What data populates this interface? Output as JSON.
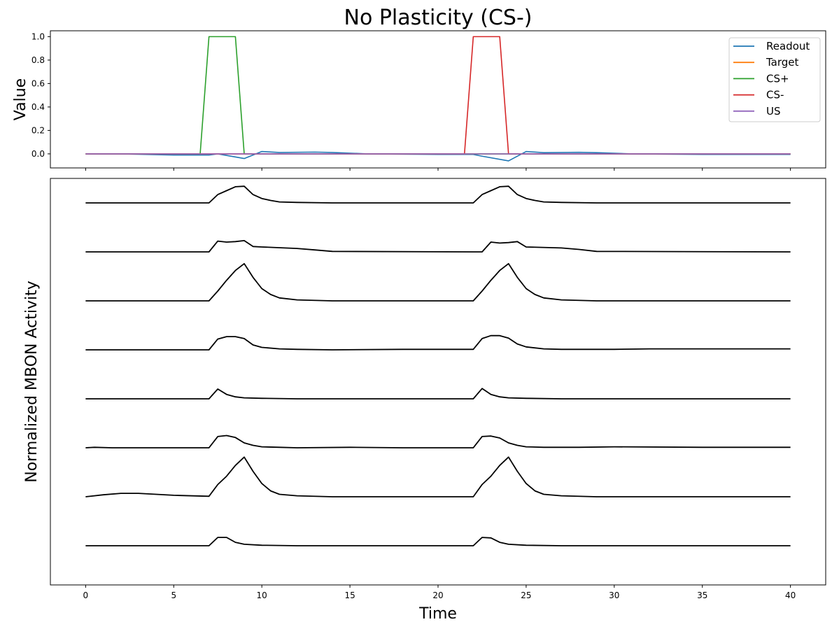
{
  "chart_data": [
    {
      "type": "line",
      "title": "No Plasticity (CS-)",
      "xlabel": "",
      "ylabel": "Value",
      "xlim": [
        -2,
        42
      ],
      "ylim": [
        -0.12,
        1.05
      ],
      "xticks": [
        0,
        5,
        10,
        15,
        20,
        25,
        30,
        35,
        40
      ],
      "xtick_labels_visible": false,
      "yticks": [
        0.0,
        0.2,
        0.4,
        0.6,
        0.8,
        1.0
      ],
      "ytick_labels": [
        "0.0",
        "0.2",
        "0.4",
        "0.6",
        "0.8",
        "1.0"
      ],
      "legend_position": "top-right",
      "grid": false,
      "series": [
        {
          "name": "Readout",
          "color": "#1f77b4",
          "x": [
            0,
            2,
            5,
            7,
            7.5,
            9,
            10,
            11,
            13,
            14,
            16,
            20,
            22,
            22.5,
            24,
            25,
            26,
            28,
            29,
            31,
            35,
            40
          ],
          "y": [
            0,
            0,
            -0.01,
            -0.01,
            0,
            -0.04,
            0.02,
            0.012,
            0.015,
            0.012,
            0,
            -0.005,
            -0.005,
            -0.02,
            -0.06,
            0.02,
            0.01,
            0.013,
            0.01,
            0,
            -0.005,
            -0.005
          ]
        },
        {
          "name": "Target",
          "color": "#ff7f0e",
          "x": [
            0,
            40
          ],
          "y": [
            0,
            0
          ]
        },
        {
          "name": "CS+",
          "color": "#2ca02c",
          "x": [
            0,
            6.5,
            7,
            8.5,
            9,
            40
          ],
          "y": [
            0,
            0,
            1,
            1,
            0,
            0
          ]
        },
        {
          "name": "CS-",
          "color": "#d62728",
          "x": [
            0,
            21.5,
            22,
            23.5,
            24,
            40
          ],
          "y": [
            0,
            0,
            1,
            1,
            0,
            0
          ]
        },
        {
          "name": "US",
          "color": "#9467bd",
          "x": [
            0,
            40
          ],
          "y": [
            0,
            0
          ]
        }
      ]
    },
    {
      "type": "line",
      "title": "",
      "xlabel": "Time",
      "ylabel": "Normalized MBON Activity",
      "xlim": [
        -2,
        42
      ],
      "ylim": [
        -0.8,
        7.5
      ],
      "xticks": [
        0,
        5,
        10,
        15,
        20,
        25,
        30,
        35,
        40
      ],
      "xtick_labels": [
        "0",
        "5",
        "10",
        "15",
        "20",
        "25",
        "30",
        "35",
        "40"
      ],
      "yticks_visible": false,
      "grid": false,
      "line_color": "#000000",
      "series": [
        {
          "x": [
            0,
            7,
            7.5,
            8,
            8.5,
            9,
            9.5,
            10,
            10.5,
            11,
            12,
            14,
            22,
            22.5,
            23,
            23.5,
            24,
            24.5,
            25,
            25.5,
            26,
            27,
            29,
            40
          ],
          "y": [
            7,
            7,
            7.17,
            7.25,
            7.33,
            7.34,
            7.17,
            7.09,
            7.05,
            7.02,
            7.01,
            7,
            7,
            7.17,
            7.25,
            7.33,
            7.34,
            7.17,
            7.09,
            7.05,
            7.02,
            7.01,
            7,
            7
          ]
        },
        {
          "x": [
            0,
            7,
            7.5,
            8,
            8.5,
            9,
            9.5,
            10,
            12,
            13,
            14,
            22,
            22.5,
            23,
            23.5,
            24,
            24.5,
            25,
            27,
            28,
            29,
            40
          ],
          "y": [
            6,
            6,
            6.22,
            6.2,
            6.21,
            6.23,
            6.11,
            6.1,
            6.07,
            6.04,
            6.01,
            6,
            6,
            6.2,
            6.18,
            6.19,
            6.21,
            6.1,
            6.08,
            6.05,
            6.01,
            6
          ]
        },
        {
          "x": [
            0,
            7,
            7.5,
            8,
            8.5,
            9,
            9.5,
            10,
            10.5,
            11,
            12,
            14,
            22,
            22.5,
            23,
            23.5,
            24,
            24.5,
            25,
            25.5,
            26,
            27,
            29,
            40
          ],
          "y": [
            5,
            5,
            5.2,
            5.42,
            5.62,
            5.76,
            5.48,
            5.25,
            5.13,
            5.06,
            5.02,
            5,
            5,
            5.2,
            5.42,
            5.62,
            5.76,
            5.48,
            5.25,
            5.13,
            5.06,
            5.02,
            5,
            5
          ]
        },
        {
          "x": [
            0,
            7,
            7.5,
            8,
            8.5,
            9,
            9.5,
            10,
            11,
            12,
            14,
            18,
            22,
            22.5,
            23,
            23.5,
            24,
            24.5,
            25,
            26,
            27,
            30,
            32,
            40
          ],
          "y": [
            4,
            4,
            4.22,
            4.27,
            4.27,
            4.23,
            4.1,
            4.05,
            4.02,
            4.01,
            4,
            4.01,
            4.01,
            4.23,
            4.29,
            4.29,
            4.24,
            4.12,
            4.06,
            4.02,
            4.01,
            4.01,
            4.02,
            4.02
          ]
        },
        {
          "x": [
            0,
            7,
            7.5,
            8,
            8.5,
            9,
            10,
            12,
            22,
            22.5,
            23,
            23.5,
            24,
            25,
            27,
            40
          ],
          "y": [
            3,
            3,
            3.2,
            3.09,
            3.04,
            3.02,
            3.01,
            3,
            3,
            3.21,
            3.09,
            3.04,
            3.02,
            3.01,
            3,
            3
          ]
        },
        {
          "x": [
            0,
            0.5,
            1.5,
            4,
            7,
            7.5,
            8,
            8.5,
            9,
            9.5,
            10,
            11,
            12,
            15,
            18,
            22,
            22.5,
            23,
            23.5,
            24,
            24.5,
            25,
            26,
            28,
            30,
            35,
            40
          ],
          "y": [
            2,
            2.01,
            2,
            2,
            2,
            2.23,
            2.25,
            2.21,
            2.1,
            2.05,
            2.02,
            2.01,
            2,
            2.01,
            2,
            2,
            2.23,
            2.24,
            2.2,
            2.1,
            2.05,
            2.02,
            2.01,
            2.01,
            2.02,
            2.01,
            2.01
          ]
        },
        {
          "x": [
            0,
            1,
            2,
            3,
            5,
            7,
            7.5,
            8,
            8.5,
            9,
            9.5,
            10,
            10.5,
            11,
            12,
            14,
            22,
            22.5,
            23,
            23.5,
            24,
            24.5,
            25,
            25.5,
            26,
            27,
            29,
            40
          ],
          "y": [
            1,
            1.04,
            1.07,
            1.07,
            1.03,
            1.01,
            1.25,
            1.42,
            1.64,
            1.81,
            1.52,
            1.27,
            1.12,
            1.05,
            1.02,
            1,
            1,
            1.25,
            1.42,
            1.64,
            1.81,
            1.52,
            1.27,
            1.12,
            1.05,
            1.02,
            1,
            1
          ]
        },
        {
          "x": [
            0,
            7,
            7.5,
            8,
            8.5,
            9,
            10,
            12,
            22,
            22.5,
            23,
            23.5,
            24,
            25,
            27,
            40
          ],
          "y": [
            0,
            0,
            0.17,
            0.17,
            0.07,
            0.03,
            0.01,
            0,
            0,
            0.17,
            0.16,
            0.07,
            0.03,
            0.01,
            0,
            0
          ]
        }
      ]
    }
  ]
}
